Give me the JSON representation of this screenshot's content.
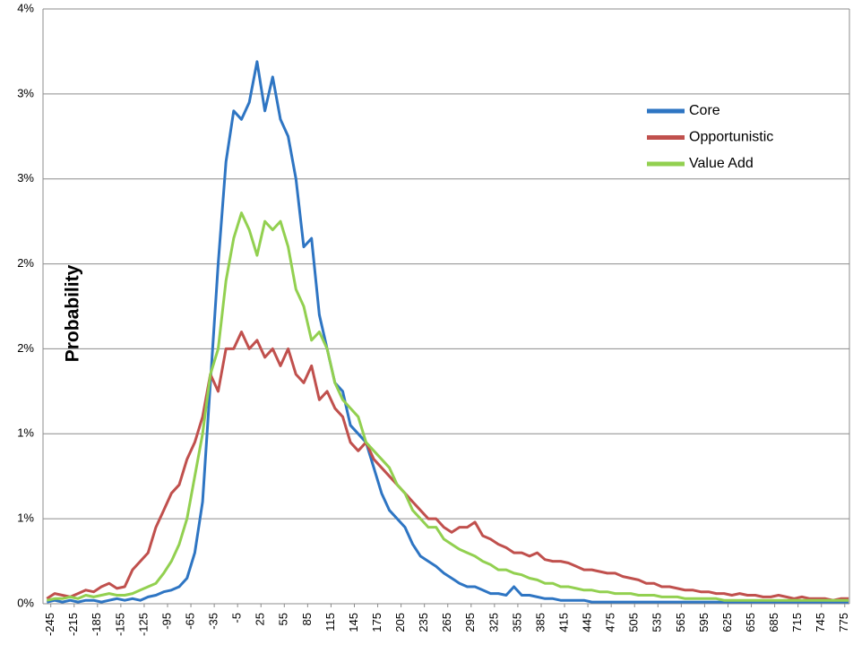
{
  "chart_data": {
    "type": "line",
    "y_label": "Probability",
    "x": [
      -250,
      -240,
      -230,
      -220,
      -210,
      -200,
      -190,
      -180,
      -170,
      -160,
      -150,
      -140,
      -130,
      -120,
      -110,
      -100,
      -90,
      -80,
      -70,
      -60,
      -50,
      -40,
      -30,
      -20,
      -10,
      0,
      10,
      20,
      30,
      40,
      50,
      60,
      70,
      80,
      90,
      100,
      110,
      120,
      130,
      140,
      150,
      160,
      170,
      180,
      190,
      200,
      210,
      220,
      230,
      240,
      250,
      260,
      270,
      280,
      290,
      300,
      310,
      320,
      330,
      340,
      350,
      360,
      370,
      380,
      390,
      400,
      410,
      420,
      430,
      440,
      450,
      460,
      470,
      480,
      490,
      500,
      510,
      520,
      530,
      540,
      550,
      560,
      570,
      580,
      590,
      600,
      610,
      620,
      630,
      640,
      650,
      660,
      670,
      680,
      690,
      700,
      710,
      720,
      730,
      740,
      750,
      760,
      770,
      780
    ],
    "series": [
      {
        "name": "Core",
        "color": "#2e75c3",
        "values": [
          0.01,
          0.02,
          0.01,
          0.02,
          0.01,
          0.02,
          0.02,
          0.01,
          0.02,
          0.03,
          0.02,
          0.03,
          0.02,
          0.04,
          0.05,
          0.07,
          0.08,
          0.1,
          0.15,
          0.3,
          0.6,
          1.3,
          2.0,
          2.6,
          2.9,
          2.85,
          2.95,
          3.19,
          2.9,
          3.1,
          2.85,
          2.75,
          2.5,
          2.1,
          2.15,
          1.7,
          1.5,
          1.3,
          1.25,
          1.05,
          1.0,
          0.95,
          0.8,
          0.65,
          0.55,
          0.5,
          0.45,
          0.35,
          0.28,
          0.25,
          0.22,
          0.18,
          0.15,
          0.12,
          0.1,
          0.1,
          0.08,
          0.06,
          0.06,
          0.05,
          0.1,
          0.05,
          0.05,
          0.04,
          0.03,
          0.03,
          0.02,
          0.02,
          0.02,
          0.02,
          0.01,
          0.01,
          0.01,
          0.01,
          0.01,
          0.01,
          0.01,
          0.01,
          0.01,
          0.01,
          0.01,
          0.01,
          0.01,
          0.01,
          0.01,
          0.01,
          0.01,
          0.01,
          0.01,
          0.01,
          0.01,
          0.01,
          0.01,
          0.01,
          0.01,
          0.01,
          0.01,
          0.01,
          0.01,
          0.01,
          0.01,
          0.01,
          0.01,
          0.01
        ]
      },
      {
        "name": "Opportunistic",
        "color": "#c0504d",
        "values": [
          0.03,
          0.06,
          0.05,
          0.04,
          0.06,
          0.08,
          0.07,
          0.1,
          0.12,
          0.09,
          0.1,
          0.2,
          0.25,
          0.3,
          0.45,
          0.55,
          0.65,
          0.7,
          0.85,
          0.95,
          1.1,
          1.35,
          1.25,
          1.5,
          1.5,
          1.6,
          1.5,
          1.55,
          1.45,
          1.5,
          1.4,
          1.5,
          1.35,
          1.3,
          1.4,
          1.2,
          1.25,
          1.15,
          1.1,
          0.95,
          0.9,
          0.95,
          0.85,
          0.8,
          0.75,
          0.7,
          0.65,
          0.6,
          0.55,
          0.5,
          0.5,
          0.45,
          0.42,
          0.45,
          0.45,
          0.48,
          0.4,
          0.38,
          0.35,
          0.33,
          0.3,
          0.3,
          0.28,
          0.3,
          0.26,
          0.25,
          0.25,
          0.24,
          0.22,
          0.2,
          0.2,
          0.19,
          0.18,
          0.18,
          0.16,
          0.15,
          0.14,
          0.12,
          0.12,
          0.1,
          0.1,
          0.09,
          0.08,
          0.08,
          0.07,
          0.07,
          0.06,
          0.06,
          0.05,
          0.06,
          0.05,
          0.05,
          0.04,
          0.04,
          0.05,
          0.04,
          0.03,
          0.04,
          0.03,
          0.03,
          0.03,
          0.02,
          0.03,
          0.03
        ]
      },
      {
        "name": "Value Add",
        "color": "#92d050",
        "values": [
          0.02,
          0.03,
          0.03,
          0.04,
          0.03,
          0.05,
          0.04,
          0.05,
          0.06,
          0.05,
          0.05,
          0.06,
          0.08,
          0.1,
          0.12,
          0.18,
          0.25,
          0.35,
          0.5,
          0.75,
          1.0,
          1.35,
          1.5,
          1.9,
          2.15,
          2.3,
          2.2,
          2.05,
          2.25,
          2.2,
          2.25,
          2.1,
          1.85,
          1.75,
          1.55,
          1.6,
          1.5,
          1.3,
          1.2,
          1.15,
          1.1,
          0.95,
          0.9,
          0.85,
          0.8,
          0.7,
          0.65,
          0.55,
          0.5,
          0.45,
          0.45,
          0.38,
          0.35,
          0.32,
          0.3,
          0.28,
          0.25,
          0.23,
          0.2,
          0.2,
          0.18,
          0.17,
          0.15,
          0.14,
          0.12,
          0.12,
          0.1,
          0.1,
          0.09,
          0.08,
          0.08,
          0.07,
          0.07,
          0.06,
          0.06,
          0.06,
          0.05,
          0.05,
          0.05,
          0.04,
          0.04,
          0.04,
          0.03,
          0.03,
          0.03,
          0.03,
          0.03,
          0.02,
          0.02,
          0.02,
          0.02,
          0.02,
          0.02,
          0.02,
          0.02,
          0.02,
          0.02,
          0.02,
          0.02,
          0.02,
          0.02,
          0.02,
          0.02,
          0.02
        ]
      }
    ],
    "xlim": [
      -255,
      781
    ],
    "xticks": [
      -245,
      -215,
      -185,
      -155,
      -125,
      -95,
      -65,
      -35,
      -5,
      25,
      55,
      85,
      115,
      145,
      175,
      205,
      235,
      265,
      295,
      325,
      355,
      385,
      415,
      445,
      475,
      505,
      535,
      565,
      595,
      625,
      655,
      685,
      715,
      745,
      775
    ],
    "ylim": [
      0,
      3.5
    ],
    "yticks": [
      {
        "value": 0,
        "label": "0%"
      },
      {
        "value": 0.5,
        "label": "1%"
      },
      {
        "value": 1,
        "label": "1%"
      },
      {
        "value": 1.5,
        "label": "2%"
      },
      {
        "value": 2,
        "label": "2%"
      },
      {
        "value": 2.5,
        "label": "3%"
      },
      {
        "value": 3,
        "label": "3%"
      },
      {
        "value": 3.5,
        "label": "4%"
      }
    ],
    "grid": true
  }
}
